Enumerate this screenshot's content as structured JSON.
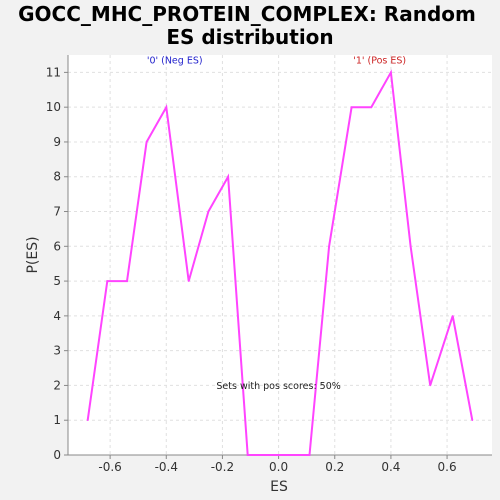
{
  "chart_data": {
    "type": "line",
    "title_line1": "GOCC_MHC_PROTEIN_COMPLEX: Random",
    "title_line2": "ES distribution",
    "xlabel": "ES",
    "ylabel": "P(ES)",
    "xlim": [
      -0.75,
      0.76
    ],
    "ylim": [
      0,
      11.5
    ],
    "xticks": [
      -0.6,
      -0.4,
      -0.2,
      0.0,
      0.2,
      0.4,
      0.6
    ],
    "xtick_labels": [
      "-0.6",
      "-0.4",
      "-0.2",
      "0.0",
      "0.2",
      "0.4",
      "0.6"
    ],
    "yticks": [
      0,
      1,
      2,
      3,
      4,
      5,
      6,
      7,
      8,
      9,
      10,
      11
    ],
    "ytick_labels": [
      "0",
      "1",
      "2",
      "3",
      "4",
      "5",
      "6",
      "7",
      "8",
      "9",
      "10",
      "11"
    ],
    "grid": true,
    "series": [
      {
        "color": "#ff44ff",
        "x": [
          -0.68,
          -0.61,
          -0.54,
          -0.47,
          -0.4,
          -0.32,
          -0.25,
          -0.18,
          -0.11,
          -0.04,
          0.04,
          0.11,
          0.18,
          0.26,
          0.33,
          0.4,
          0.47,
          0.54,
          0.62,
          0.69
        ],
        "y": [
          1,
          5,
          5,
          9,
          10,
          5,
          7,
          8,
          0,
          0,
          0,
          0,
          6,
          10,
          10,
          11,
          6,
          2,
          4,
          1
        ]
      }
    ],
    "annotations": [
      {
        "text": "'0' (Neg ES)",
        "x": -0.37,
        "y": 11.25,
        "color": "#2222cc"
      },
      {
        "text": "'1' (Pos ES)",
        "x": 0.36,
        "y": 11.25,
        "color": "#cc2222"
      },
      {
        "text": "Sets with pos scores: 50%",
        "x": 0.0,
        "y": 1.9,
        "color": "#222222"
      }
    ]
  }
}
